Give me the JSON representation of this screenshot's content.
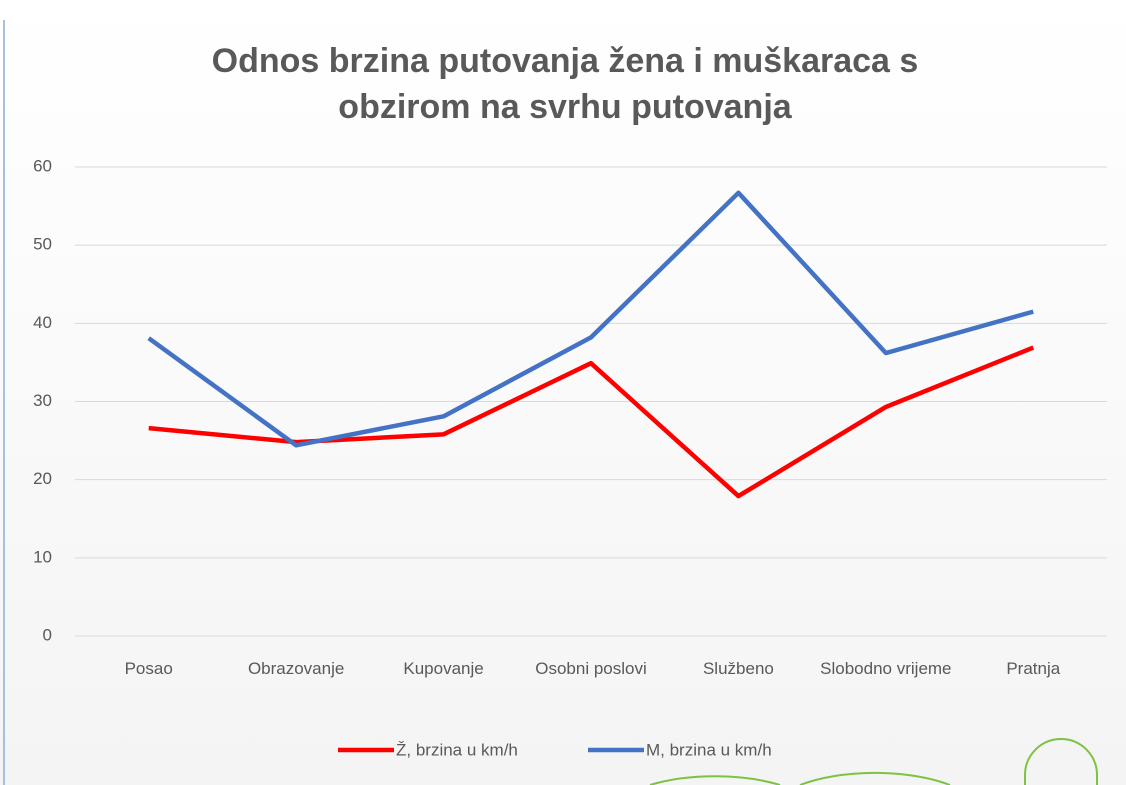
{
  "chart_data": {
    "type": "line",
    "title": "Odnos brzina putovanja žena i muškaraca s obzirom na svrhu putovanja",
    "categories": [
      "Posao",
      "Obrazovanje",
      "Kupovanje",
      "Osobni poslovi",
      "Službeno",
      "Slobodno vrijeme",
      "Pratnja"
    ],
    "series": [
      {
        "name": "Ž, brzina u km/h",
        "color": "#ff0000",
        "values": [
          26.6,
          24.8,
          25.8,
          34.9,
          17.9,
          29.3,
          36.9
        ]
      },
      {
        "name": "M, brzina u km/h",
        "color": "#4472c4",
        "values": [
          38.1,
          24.4,
          28.1,
          38.2,
          56.7,
          36.2,
          41.5
        ]
      }
    ],
    "ylim": [
      0,
      60
    ],
    "yticks": [
      0,
      10,
      20,
      30,
      40,
      50,
      60
    ],
    "grid": true,
    "legend": "bottom"
  }
}
